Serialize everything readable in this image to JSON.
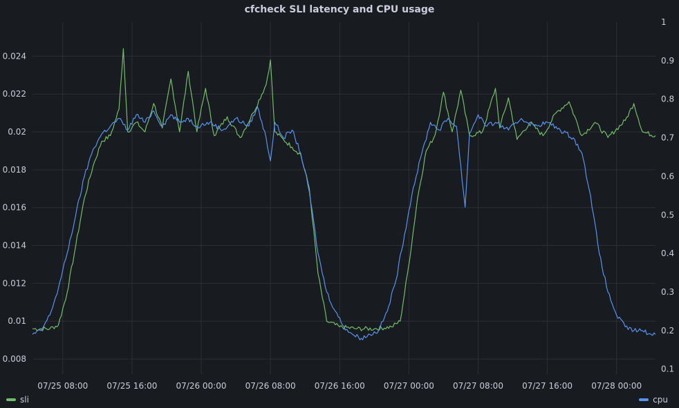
{
  "chart_data": {
    "type": "line",
    "title": "cfcheck SLI latency and CPU usage",
    "x_axis": {
      "ticks": [
        "07/25 08:00",
        "07/25 16:00",
        "07/26 00:00",
        "07/26 08:00",
        "07/26 16:00",
        "07/27 00:00",
        "07/27 08:00",
        "07/27 16:00",
        "07/28 00:00"
      ],
      "start_hours": -3.5,
      "end_hours": 68.5
    },
    "y_left": {
      "min": 0.0072,
      "max": 0.0258,
      "ticks": [
        "0.008",
        "0.01",
        "0.012",
        "0.014",
        "0.016",
        "0.018",
        "0.02",
        "0.022",
        "0.024"
      ],
      "tick_values": [
        0.008,
        0.01,
        0.012,
        0.014,
        0.016,
        0.018,
        0.02,
        0.022,
        0.024
      ]
    },
    "y_right": {
      "min": 0.087,
      "max": 1.0,
      "ticks": [
        "0.1",
        "0.2",
        "0.3",
        "0.4",
        "0.5",
        "0.6",
        "0.7",
        "0.8",
        "0.9",
        "1"
      ],
      "tick_values": [
        0.1,
        0.2,
        0.3,
        0.4,
        0.5,
        0.6,
        0.7,
        0.8,
        0.9,
        1.0
      ]
    },
    "grid": true,
    "legend_placement": "bottom",
    "series": [
      {
        "name": "sli",
        "axis": "left",
        "color": "#73bf69",
        "points": [
          [
            -3.5,
            0.0096
          ],
          [
            -1.5,
            0.0096
          ],
          [
            -0.5,
            0.0098
          ],
          [
            0.5,
            0.0115
          ],
          [
            1.5,
            0.014
          ],
          [
            2.5,
            0.0165
          ],
          [
            3.5,
            0.0182
          ],
          [
            4.5,
            0.0195
          ],
          [
            5.5,
            0.0198
          ],
          [
            6.5,
            0.0212
          ],
          [
            7.0,
            0.0244
          ],
          [
            7.5,
            0.02
          ],
          [
            8.5,
            0.0205
          ],
          [
            9.5,
            0.02
          ],
          [
            10.5,
            0.0215
          ],
          [
            11.5,
            0.0202
          ],
          [
            12.5,
            0.0228
          ],
          [
            13.5,
            0.02
          ],
          [
            14.5,
            0.0232
          ],
          [
            15.5,
            0.02
          ],
          [
            16.5,
            0.0223
          ],
          [
            17.5,
            0.0198
          ],
          [
            19.0,
            0.0208
          ],
          [
            20.5,
            0.0197
          ],
          [
            22.0,
            0.021
          ],
          [
            23.5,
            0.0225
          ],
          [
            24.0,
            0.0238
          ],
          [
            24.5,
            0.02
          ],
          [
            25.5,
            0.0196
          ],
          [
            26.5,
            0.0192
          ],
          [
            27.5,
            0.0188
          ],
          [
            28.5,
            0.017
          ],
          [
            29.5,
            0.0125
          ],
          [
            30.5,
            0.01
          ],
          [
            32.0,
            0.0097
          ],
          [
            34.0,
            0.0096
          ],
          [
            36.0,
            0.0096
          ],
          [
            38.0,
            0.0097
          ],
          [
            39.0,
            0.01
          ],
          [
            40.0,
            0.013
          ],
          [
            41.0,
            0.0165
          ],
          [
            42.0,
            0.019
          ],
          [
            43.0,
            0.0198
          ],
          [
            44.0,
            0.0221
          ],
          [
            45.0,
            0.02
          ],
          [
            46.0,
            0.0222
          ],
          [
            47.0,
            0.0198
          ],
          [
            48.5,
            0.02
          ],
          [
            50.0,
            0.0223
          ],
          [
            50.5,
            0.0202
          ],
          [
            51.5,
            0.0218
          ],
          [
            52.5,
            0.0196
          ],
          [
            54.0,
            0.0205
          ],
          [
            55.5,
            0.0198
          ],
          [
            57.0,
            0.021
          ],
          [
            58.5,
            0.0216
          ],
          [
            60.0,
            0.0198
          ],
          [
            61.5,
            0.0205
          ],
          [
            63.0,
            0.0197
          ],
          [
            65.0,
            0.0206
          ],
          [
            66.0,
            0.0215
          ],
          [
            67.0,
            0.02
          ],
          [
            68.5,
            0.0198
          ]
        ]
      },
      {
        "name": "cpu",
        "axis": "right",
        "color": "#5794f2",
        "points": [
          [
            -3.5,
            0.19
          ],
          [
            -2.5,
            0.2
          ],
          [
            -1.5,
            0.24
          ],
          [
            -0.5,
            0.31
          ],
          [
            0.5,
            0.4
          ],
          [
            1.5,
            0.5
          ],
          [
            2.5,
            0.6
          ],
          [
            3.5,
            0.67
          ],
          [
            4.5,
            0.71
          ],
          [
            5.5,
            0.73
          ],
          [
            6.5,
            0.75
          ],
          [
            7.5,
            0.72
          ],
          [
            8.5,
            0.76
          ],
          [
            9.5,
            0.74
          ],
          [
            10.5,
            0.77
          ],
          [
            11.5,
            0.73
          ],
          [
            12.5,
            0.76
          ],
          [
            13.5,
            0.74
          ],
          [
            14.5,
            0.75
          ],
          [
            15.5,
            0.73
          ],
          [
            17.0,
            0.74
          ],
          [
            18.5,
            0.72
          ],
          [
            20.0,
            0.75
          ],
          [
            21.5,
            0.73
          ],
          [
            22.5,
            0.78
          ],
          [
            23.5,
            0.7
          ],
          [
            24.0,
            0.64
          ],
          [
            24.5,
            0.74
          ],
          [
            25.5,
            0.7
          ],
          [
            26.5,
            0.72
          ],
          [
            27.5,
            0.66
          ],
          [
            28.5,
            0.56
          ],
          [
            29.5,
            0.4
          ],
          [
            30.5,
            0.3
          ],
          [
            31.5,
            0.25
          ],
          [
            32.5,
            0.21
          ],
          [
            33.5,
            0.19
          ],
          [
            34.5,
            0.18
          ],
          [
            35.5,
            0.19
          ],
          [
            36.5,
            0.2
          ],
          [
            37.5,
            0.25
          ],
          [
            38.5,
            0.33
          ],
          [
            39.5,
            0.45
          ],
          [
            40.5,
            0.57
          ],
          [
            41.5,
            0.66
          ],
          [
            42.5,
            0.74
          ],
          [
            43.5,
            0.72
          ],
          [
            44.5,
            0.75
          ],
          [
            45.5,
            0.73
          ],
          [
            46.5,
            0.52
          ],
          [
            47.0,
            0.71
          ],
          [
            48.0,
            0.76
          ],
          [
            49.0,
            0.73
          ],
          [
            50.0,
            0.74
          ],
          [
            51.5,
            0.72
          ],
          [
            53.0,
            0.75
          ],
          [
            54.5,
            0.73
          ],
          [
            56.0,
            0.74
          ],
          [
            57.5,
            0.72
          ],
          [
            59.0,
            0.7
          ],
          [
            60.0,
            0.66
          ],
          [
            61.0,
            0.55
          ],
          [
            62.0,
            0.4
          ],
          [
            63.0,
            0.3
          ],
          [
            64.0,
            0.24
          ],
          [
            65.0,
            0.21
          ],
          [
            66.0,
            0.2
          ],
          [
            67.0,
            0.2
          ],
          [
            68.0,
            0.19
          ],
          [
            68.5,
            0.19
          ]
        ]
      }
    ]
  }
}
